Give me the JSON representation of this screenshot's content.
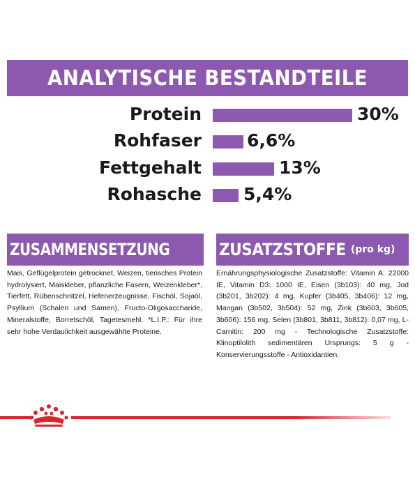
{
  "analysis": {
    "title": "ANALYTISCHE BESTANDTEILE",
    "accent_color": "#8c58b0",
    "items": [
      {
        "label": "Protein",
        "value": "30%",
        "percent": 30
      },
      {
        "label": "Rohfaser",
        "value": "6,6%",
        "percent": 6.6
      },
      {
        "label": "Fettgehalt",
        "value": "13%",
        "percent": 13
      },
      {
        "label": "Rohasche",
        "value": "5,4%",
        "percent": 5.4
      }
    ]
  },
  "composition": {
    "title": "ZUSAMMENSETZUNG",
    "text": "Mais, Geflügelprotein getrocknet, Weizen, tierisches Protein hydrolysiert, Maiskleber, pflanzliche Fasern, Weizenkleber*, Tierfett, Rübenschnitzel, Hefenerzeugnisse, Fischöl, Sojaöl, Psyllium (Schalen und Samen), Fructo-Oligosaccharide, Mineralstoffe, Borretschöl, Tagetesmehl. *L.I.P.: Für ihre sehr hohe Verdaulichkeit ausgewählte Proteine."
  },
  "additives": {
    "title": "ZUSATZSTOFFE",
    "title_suffix": "(pro kg)",
    "text": "Ernährungsphysiologische Zusatzstoffe: Vitamin A: 22000 IE, Vitamin D3: 1000 IE, Eisen (3b103): 40 mg, Jod (3b201, 3b202): 4 mg, Kupfer (3b405, 3b406): 12 mg, Mangan (3b502, 3b504): 52 mg, Zink (3b603, 3b605, 3b606): 156 mg, Selen (3b801, 3b811, 3b812): 0,07 mg, L-Carnitin: 200 mg - Technologische Zusatzstoffe: Klinoptilolith sedimentären Ursprungs: 5 g - Konservierungsstoffe - Antioxidantien."
  },
  "brand": {
    "logo": "crown-icon",
    "color": "#d8262d"
  }
}
